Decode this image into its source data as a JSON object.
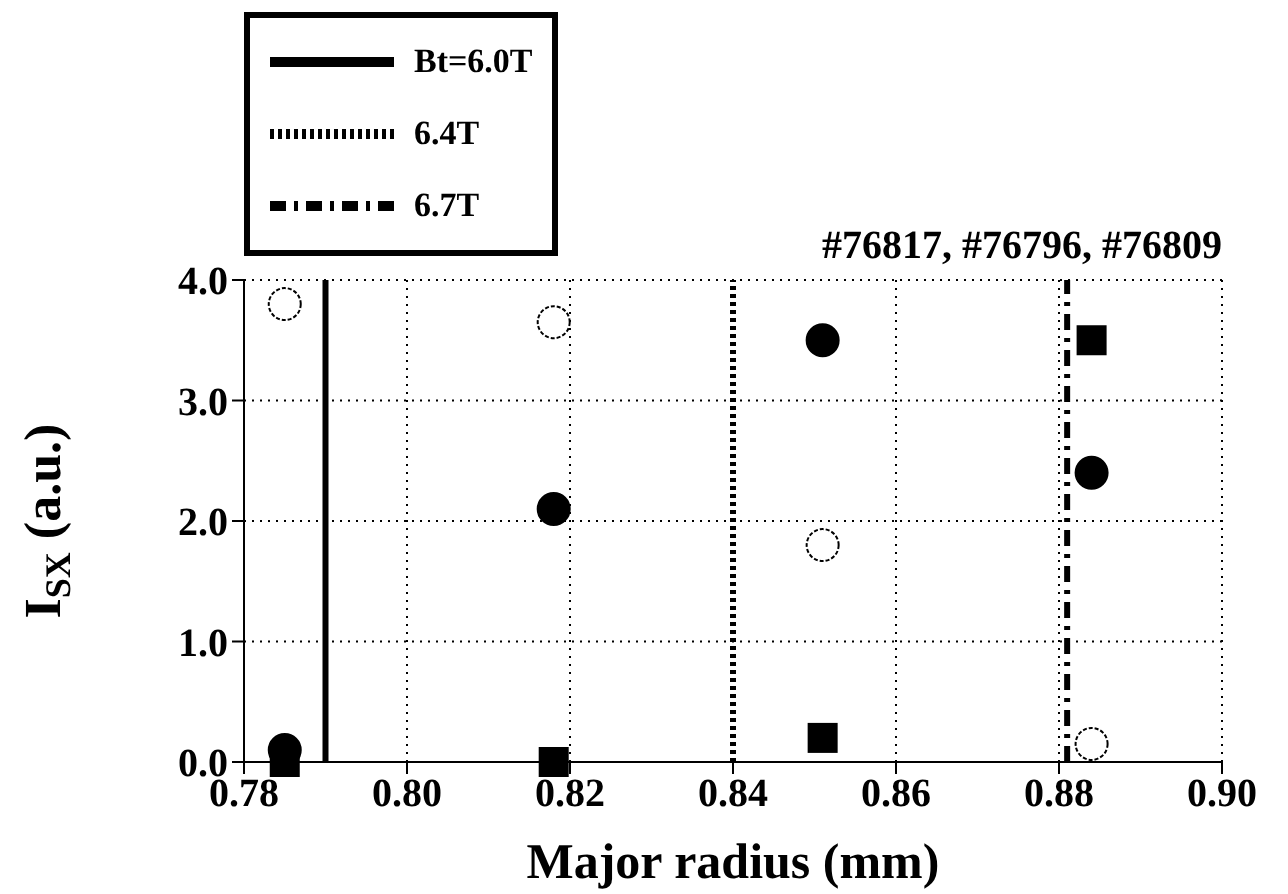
{
  "chart_data": {
    "type": "scatter",
    "title": "#76817, #76796, #76809",
    "xlabel": "Major radius (mm)",
    "ylabel": "I$_{SX}$ (a.u.)",
    "xlim": [
      0.78,
      0.9
    ],
    "xticks": [
      {
        "value": 0.78,
        "label": "0.78"
      },
      {
        "value": 0.8,
        "label": "0.80"
      },
      {
        "value": 0.82,
        "label": "0.82"
      },
      {
        "value": 0.84,
        "label": "0.84"
      },
      {
        "value": 0.86,
        "label": "0.86"
      },
      {
        "value": 0.88,
        "label": "0.88"
      },
      {
        "value": 0.9,
        "label": "0.90"
      }
    ],
    "ylim": [
      0,
      4
    ],
    "yticks": [
      {
        "value": 0,
        "label": "0.0"
      },
      {
        "value": 1,
        "label": "1.0"
      },
      {
        "value": 2,
        "label": "2.0"
      },
      {
        "value": 3,
        "label": "3.0"
      },
      {
        "value": 4,
        "label": "4.0"
      }
    ],
    "grid": true,
    "legend": "top left",
    "series": [
      {
        "marker": "circle",
        "color": "#ffffff",
        "x": [
          0.785,
          0.818,
          0.851,
          0.884
        ],
        "values": [
          3.8,
          3.65,
          1.8,
          0.15
        ]
      },
      {
        "marker": "circle",
        "color": "#000000",
        "x": [
          0.785,
          0.818,
          0.851,
          0.884
        ],
        "values": [
          0.1,
          2.1,
          3.5,
          2.4
        ]
      },
      {
        "marker": "square",
        "color": "#000000",
        "x": [
          0.785,
          0.818,
          0.851,
          0.884
        ],
        "values": [
          0.0,
          0.0,
          0.2,
          3.5
        ]
      },
      {
        "type": "line",
        "name": "Bt=6.0T",
        "line_style": "solid",
        "color": "#000000",
        "x": [
          0.79,
          0.79
        ],
        "values": [
          0,
          4
        ]
      },
      {
        "type": "line",
        "name": "6.4T",
        "line_style": "dotted",
        "color": "#000000",
        "x": [
          0.84,
          0.84
        ],
        "values": [
          0,
          4
        ]
      },
      {
        "type": "line",
        "name": "6.7T",
        "line_style": "dashed",
        "color": "#000000",
        "x": [
          0.881,
          0.881
        ],
        "values": [
          0,
          4
        ]
      }
    ]
  }
}
